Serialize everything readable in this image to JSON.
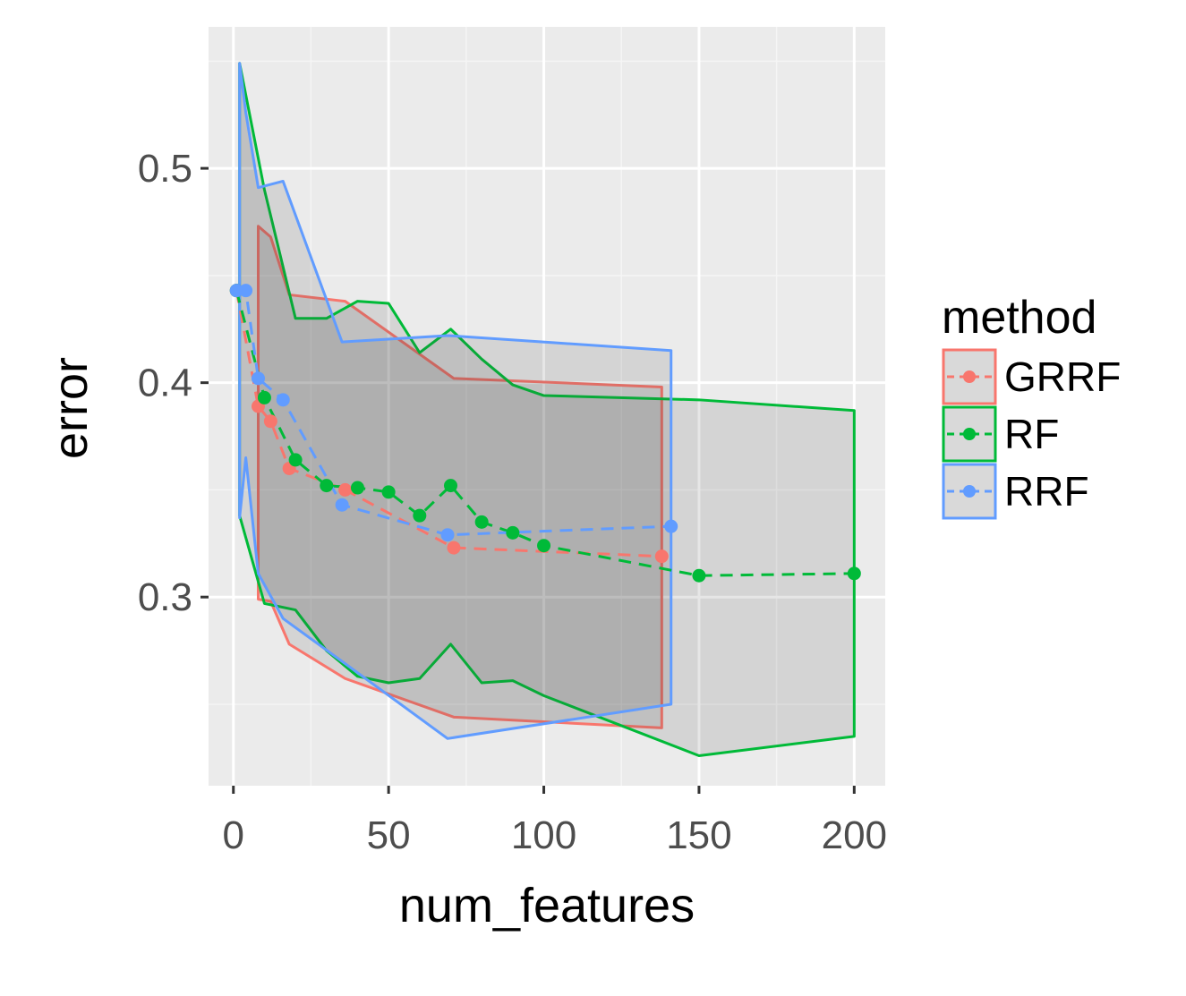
{
  "chart_data": {
    "type": "line",
    "xlabel": "num_features",
    "ylabel": "error",
    "xlim": [
      -8,
      210
    ],
    "ylim": [
      0.212,
      0.566
    ],
    "x_ticks": [
      0,
      50,
      100,
      150,
      200
    ],
    "x_tick_labels": [
      "0",
      "50",
      "100",
      "150",
      "200"
    ],
    "y_ticks": [
      0.3,
      0.4,
      0.5
    ],
    "y_tick_labels": [
      "0.3",
      "0.4",
      "0.5"
    ],
    "grid": true,
    "legend": {
      "title": "method",
      "position": "right"
    },
    "series": [
      {
        "name": "GRRF",
        "color": "#F8766D",
        "points": {
          "x": [
            1,
            8,
            12,
            18,
            36,
            71,
            138
          ],
          "y": [
            0.443,
            0.389,
            0.382,
            0.36,
            0.35,
            0.323,
            0.319
          ]
        },
        "ribbon": {
          "upper": [
            [
              8,
              0.473
            ],
            [
              12,
              0.468
            ],
            [
              18,
              0.441
            ],
            [
              36,
              0.438
            ],
            [
              71,
              0.402
            ],
            [
              138,
              0.398
            ]
          ],
          "lower": [
            [
              8,
              0.299
            ],
            [
              12,
              0.298
            ],
            [
              18,
              0.278
            ],
            [
              36,
              0.262
            ],
            [
              71,
              0.244
            ],
            [
              138,
              0.239
            ]
          ]
        }
      },
      {
        "name": "RF",
        "color": "#00BA38",
        "points": {
          "x": [
            1,
            10,
            20,
            30,
            40,
            50,
            60,
            70,
            80,
            90,
            100,
            150,
            200
          ],
          "y": [
            0.443,
            0.393,
            0.364,
            0.352,
            0.351,
            0.349,
            0.338,
            0.352,
            0.335,
            0.33,
            0.324,
            0.31,
            0.311
          ]
        },
        "ribbon": {
          "upper": [
            [
              2,
              0.549
            ],
            [
              10,
              0.49
            ],
            [
              20,
              0.43
            ],
            [
              30,
              0.43
            ],
            [
              40,
              0.438
            ],
            [
              50,
              0.437
            ],
            [
              60,
              0.414
            ],
            [
              70,
              0.425
            ],
            [
              80,
              0.411
            ],
            [
              90,
              0.399
            ],
            [
              100,
              0.394
            ],
            [
              150,
              0.392
            ],
            [
              200,
              0.387
            ]
          ],
          "lower": [
            [
              2,
              0.338
            ],
            [
              10,
              0.297
            ],
            [
              20,
              0.294
            ],
            [
              30,
              0.275
            ],
            [
              40,
              0.263
            ],
            [
              50,
              0.26
            ],
            [
              60,
              0.262
            ],
            [
              70,
              0.278
            ],
            [
              80,
              0.26
            ],
            [
              90,
              0.261
            ],
            [
              100,
              0.254
            ],
            [
              150,
              0.226
            ],
            [
              200,
              0.235
            ]
          ]
        }
      },
      {
        "name": "RRF",
        "color": "#619CFF",
        "points": {
          "x": [
            1,
            4,
            8,
            16,
            35,
            69,
            141
          ],
          "y": [
            0.443,
            0.443,
            0.402,
            0.392,
            0.343,
            0.329,
            0.333
          ]
        },
        "ribbon": {
          "upper": [
            [
              2,
              0.549
            ],
            [
              4,
              0.526
            ],
            [
              8,
              0.491
            ],
            [
              16,
              0.494
            ],
            [
              35,
              0.419
            ],
            [
              69,
              0.422
            ],
            [
              141,
              0.415
            ]
          ],
          "lower": [
            [
              2,
              0.337
            ],
            [
              4,
              0.365
            ],
            [
              8,
              0.311
            ],
            [
              16,
              0.29
            ],
            [
              35,
              0.27
            ],
            [
              69,
              0.234
            ],
            [
              141,
              0.25
            ]
          ]
        }
      }
    ]
  }
}
